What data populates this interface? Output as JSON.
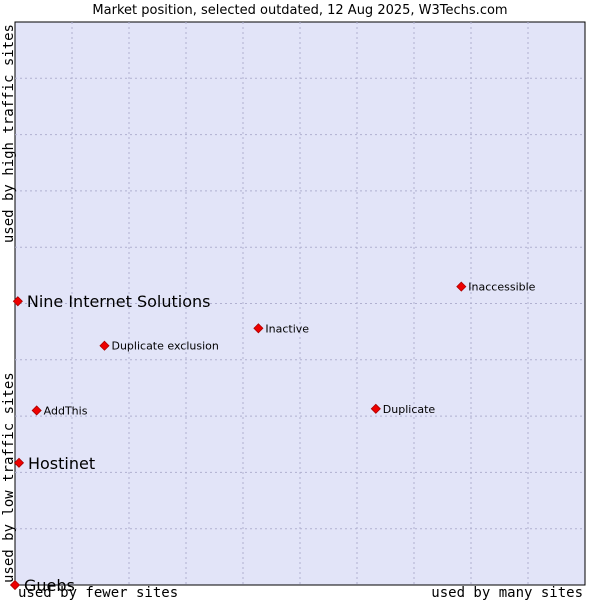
{
  "chart_data": {
    "type": "scatter",
    "title": "Market position, selected outdated, 12 Aug 2025, W3Techs.com",
    "xlabel_left": "used by fewer sites",
    "xlabel_right": "used by many sites",
    "ylabel_bottom": "used by low traffic sites",
    "ylabel_top": "used by high traffic sites",
    "xlim": [
      0,
      10
    ],
    "ylim": [
      0,
      10
    ],
    "grid": true,
    "points": [
      {
        "label": "Nine Internet Solutions",
        "x": 0.05,
        "y": 5.04,
        "emphasis": true
      },
      {
        "label": "Hostinet",
        "x": 0.07,
        "y": 2.17,
        "emphasis": true
      },
      {
        "label": "Guebs",
        "x": 0.0,
        "y": 0.0,
        "emphasis": true
      },
      {
        "label": "AddThis",
        "x": 0.38,
        "y": 3.1,
        "emphasis": false
      },
      {
        "label": "Duplicate exclusion",
        "x": 1.57,
        "y": 4.25,
        "emphasis": false
      },
      {
        "label": "Inactive",
        "x": 4.27,
        "y": 4.56,
        "emphasis": false
      },
      {
        "label": "Duplicate",
        "x": 6.33,
        "y": 3.13,
        "emphasis": false
      },
      {
        "label": "Inaccessible",
        "x": 7.83,
        "y": 5.3,
        "emphasis": false
      }
    ]
  }
}
